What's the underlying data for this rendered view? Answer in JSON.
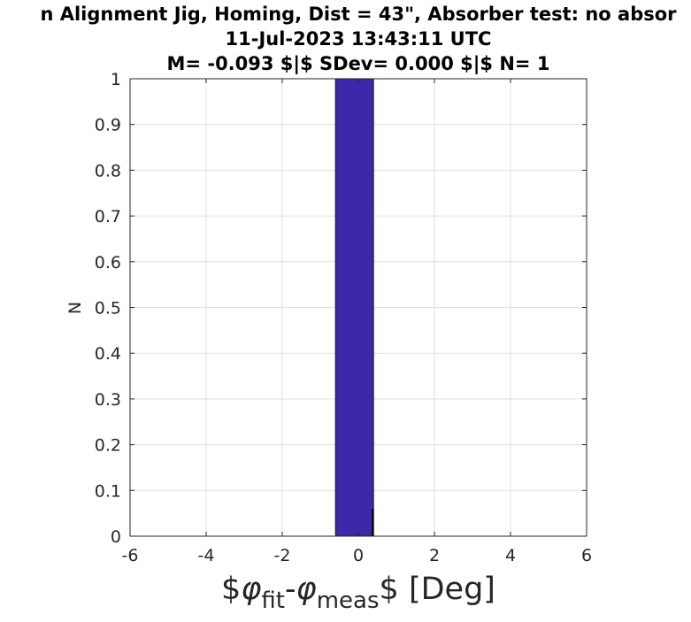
{
  "chart_data": {
    "type": "bar",
    "title_lines": [
      "n Alignment Jig, Homing, Dist = 43\", Absorber test: no absor",
      "11-Jul-2023 13:43:11 UTC",
      "M= -0.093 $|$ SDev= 0.000 $|$ N= 1"
    ],
    "xlabel": "$\\phi_{fit}-\\phi_{meas}$ [Deg]",
    "xlabel_parts": [
      "$",
      "φ",
      "fit",
      "-",
      "φ",
      "meas",
      "$ [Deg]"
    ],
    "ylabel": "N",
    "xlim": [
      -6,
      6
    ],
    "ylim": [
      0,
      1
    ],
    "xticks": [
      "-6",
      "-4",
      "-2",
      "0",
      "2",
      "4",
      "6"
    ],
    "yticks": [
      "0",
      "0.1",
      "0.2",
      "0.3",
      "0.4",
      "0.5",
      "0.6",
      "0.7",
      "0.8",
      "0.9",
      "1"
    ],
    "grid": true,
    "bar_color": "#3c28a8",
    "bars": [
      {
        "x_start": -0.6,
        "x_end": 0.4,
        "value": 1
      }
    ],
    "mean_marker": {
      "x": 0.4,
      "value": 0.06
    }
  }
}
